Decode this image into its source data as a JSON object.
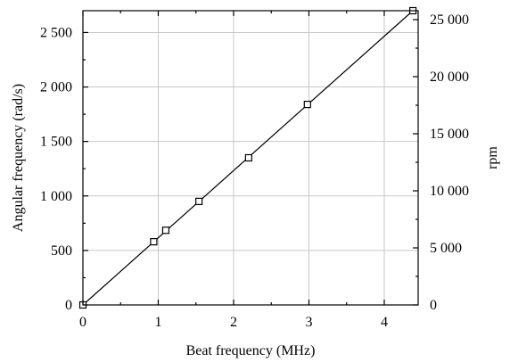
{
  "chart_data": {
    "type": "scatter",
    "xlabel": "Beat frequency (MHz)",
    "ylabel": "Angular frequency (rad/s)",
    "y2label": "rpm",
    "xlim": [
      0,
      4.45
    ],
    "ylim": [
      0,
      2700
    ],
    "y2lim": [
      0,
      25783
    ],
    "grid": true,
    "x_ticks": [
      0,
      1,
      2,
      3,
      4
    ],
    "x_tick_labels": [
      "0",
      "1",
      "2",
      "3",
      "4"
    ],
    "y_ticks": [
      0,
      500,
      1000,
      1500,
      2000,
      2500
    ],
    "y_tick_labels": [
      "0",
      "500",
      "1 000",
      "1 500",
      "2 000",
      "2 500"
    ],
    "y2_ticks": [
      0,
      5000,
      10000,
      15000,
      20000,
      25000
    ],
    "y2_tick_labels": [
      "0",
      "5 000",
      "10 000",
      "15 000",
      "20 000",
      "25 000"
    ],
    "series": [
      {
        "marker": "open-square",
        "points": [
          {
            "x": 0,
            "y": 0
          },
          {
            "x": 0.94,
            "y": 580
          },
          {
            "x": 1.1,
            "y": 685
          },
          {
            "x": 1.54,
            "y": 950
          },
          {
            "x": 2.2,
            "y": 1350
          },
          {
            "x": 2.98,
            "y": 1840
          },
          {
            "x": 4.38,
            "y": 2700
          }
        ]
      }
    ],
    "fit_line": {
      "x": [
        0,
        4.38
      ],
      "y": [
        0,
        2700
      ]
    }
  }
}
